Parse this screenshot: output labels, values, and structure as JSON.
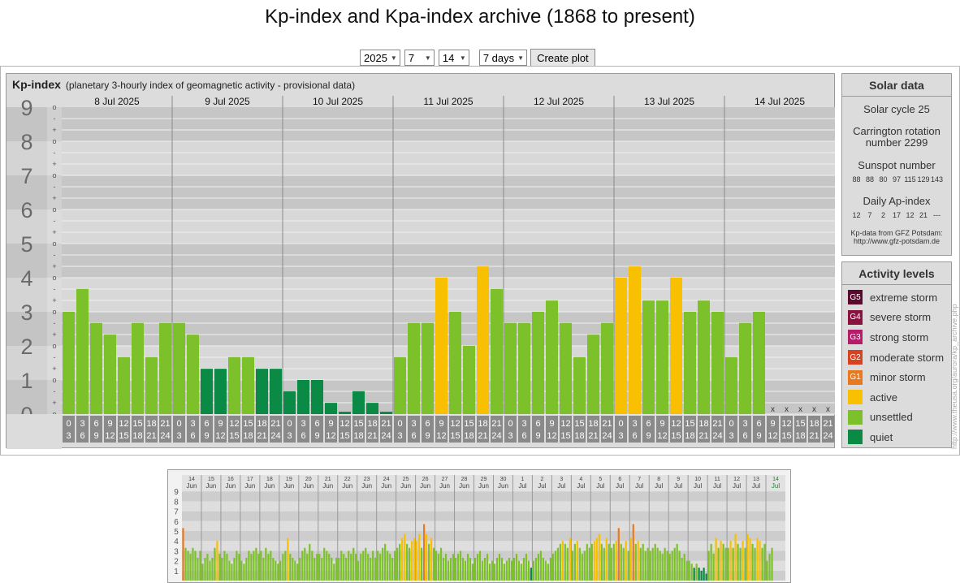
{
  "page": {
    "title": "Kp-index and Kpa-index archive (1868 to present)"
  },
  "controls": {
    "year": "2025",
    "month": "7",
    "day": "14",
    "period": "7 days",
    "create_label": "Create plot"
  },
  "kp_panel": {
    "name": "Kp-index",
    "subtitle": "(planetary 3-hourly index of geomagnetic activity - provisional data)"
  },
  "solar": {
    "title": "Solar data",
    "cycle": "Solar cycle 25",
    "carrington_line1": "Carrington rotation",
    "carrington_line2": "number 2299",
    "sunspot_title": "Sunspot number",
    "sunspot_values": [
      "88",
      "88",
      "80",
      "97",
      "115",
      "129",
      "143"
    ],
    "ap_title": "Daily Ap-index",
    "ap_values": [
      "12",
      "7",
      "2",
      "17",
      "12",
      "21",
      "---"
    ],
    "credit_line1": "Kp-data from GFZ Potsdam:",
    "credit_line2": "http://www.gfz-potsdam.de"
  },
  "activity": {
    "title": "Activity levels",
    "items": [
      {
        "code": "G5",
        "label": "extreme storm",
        "color": "#5a0a2e"
      },
      {
        "code": "G4",
        "label": "severe storm",
        "color": "#8a1240"
      },
      {
        "code": "G3",
        "label": "strong storm",
        "color": "#b51d6a"
      },
      {
        "code": "G2",
        "label": "moderate storm",
        "color": "#d8431f"
      },
      {
        "code": "G1",
        "label": "minor storm",
        "color": "#e8791e"
      },
      {
        "code": "",
        "label": "active",
        "color": "#f8c000"
      },
      {
        "code": "",
        "label": "unsettled",
        "color": "#7cc12a"
      },
      {
        "code": "",
        "label": "quiet",
        "color": "#0a8a44"
      }
    ]
  },
  "vertical_url": "http://www.theusa.org/aurora/kp_archive.php",
  "chart_data": [
    {
      "type": "bar",
      "ylim": [
        0,
        9
      ],
      "y_ticks": [
        "0",
        "1",
        "2",
        "3",
        "4",
        "5",
        "6",
        "7",
        "8",
        "9"
      ],
      "sub_ticks": [
        "o",
        "+",
        "-"
      ],
      "days": [
        "8 Jul 2025",
        "9 Jul 2025",
        "10 Jul 2025",
        "11 Jul 2025",
        "12 Jul 2025",
        "13 Jul 2025",
        "14 Jul 2025"
      ],
      "slot_top": [
        "0",
        "3",
        "6",
        "9",
        "12",
        "15",
        "18",
        "21"
      ],
      "slot_bottom": [
        "3",
        "6",
        "9",
        "12",
        "15",
        "18",
        "21",
        "24"
      ],
      "missing_marker": "x",
      "values": [
        3,
        3.67,
        2.67,
        2.33,
        1.67,
        2.67,
        1.67,
        2.67,
        2.67,
        2.33,
        1.33,
        1.33,
        1.67,
        1.67,
        1.33,
        1.33,
        0.67,
        1,
        1,
        0.33,
        0.07,
        0.67,
        0.33,
        0.07,
        1.67,
        2.67,
        2.67,
        4,
        3,
        2,
        4.33,
        3.67,
        2.67,
        2.67,
        3,
        3.33,
        2.67,
        1.67,
        2.33,
        2.67,
        4,
        4.33,
        3.33,
        3.33,
        4,
        3,
        3.33,
        3,
        1.67,
        2.67,
        3,
        null,
        null,
        null,
        null,
        null
      ],
      "colors": {
        "quiet": "#0a8a44",
        "unsettled": "#7cc12a",
        "active": "#f8c000",
        "g1": "#e8791e"
      }
    },
    {
      "type": "bar",
      "ylim": [
        0,
        9
      ],
      "y_ticks": [
        "1",
        "2",
        "3",
        "4",
        "5",
        "6",
        "7",
        "8",
        "9"
      ],
      "day_numbers": [
        "14",
        "15",
        "16",
        "17",
        "18",
        "19",
        "20",
        "21",
        "22",
        "23",
        "24",
        "25",
        "26",
        "27",
        "28",
        "29",
        "30",
        "1",
        "2",
        "3",
        "4",
        "5",
        "6",
        "7",
        "8",
        "9",
        "10",
        "11",
        "12",
        "13",
        "14"
      ],
      "month_labels": [
        "Jun",
        "Jun",
        "Jun",
        "Jun",
        "Jun",
        "Jun",
        "Jun",
        "Jun",
        "Jun",
        "Jun",
        "Jun",
        "Jun",
        "Jun",
        "Jun",
        "Jun",
        "Jun",
        "Jun",
        "Jul",
        "Jul",
        "Jul",
        "Jul",
        "Jul",
        "Jul",
        "Jul",
        "Jul",
        "Jul",
        "Jul",
        "Jul",
        "Jul",
        "Jul",
        "Jul"
      ],
      "daily_values": [
        [
          5.3,
          3.3,
          3.0,
          2.7,
          3.3,
          3.0,
          2.3,
          3.0
        ],
        [
          1.7,
          2.3,
          2.7,
          2.0,
          2.3,
          3.3,
          4.0,
          2.7
        ],
        [
          2.3,
          3.0,
          2.7,
          2.0,
          1.7,
          2.3,
          3.0,
          2.7
        ],
        [
          2.0,
          1.7,
          2.3,
          3.0,
          2.7,
          3.0,
          3.3,
          2.7
        ],
        [
          3.0,
          2.3,
          3.3,
          2.7,
          3.0,
          2.3,
          2.0,
          1.7
        ],
        [
          2.0,
          2.7,
          3.0,
          4.3,
          2.7,
          2.3,
          2.0,
          1.7
        ],
        [
          2.3,
          3.0,
          3.3,
          2.7,
          3.7,
          3.0,
          2.3,
          2.7
        ],
        [
          2.7,
          2.3,
          3.3,
          3.0,
          2.7,
          2.3,
          1.7,
          2.3
        ],
        [
          2.3,
          3.0,
          2.7,
          2.3,
          3.0,
          2.7,
          3.3,
          2.7
        ],
        [
          2.0,
          2.7,
          3.0,
          3.3,
          2.7,
          2.3,
          3.0,
          2.3
        ],
        [
          3.0,
          2.7,
          3.3,
          3.7,
          3.0,
          2.7,
          2.3,
          3.0
        ],
        [
          3.3,
          3.7,
          4.3,
          4.7,
          3.7,
          3.3,
          4.0,
          4.3
        ],
        [
          4.0,
          4.7,
          3.3,
          5.7,
          4.7,
          3.7,
          4.3,
          3.3
        ],
        [
          3.0,
          2.7,
          3.3,
          2.3,
          2.7,
          2.0,
          2.3,
          2.7
        ],
        [
          2.3,
          2.7,
          3.0,
          2.3,
          2.0,
          2.7,
          2.3,
          1.7
        ],
        [
          2.3,
          2.7,
          3.0,
          2.0,
          2.3,
          2.7,
          1.7,
          2.0
        ],
        [
          1.7,
          2.3,
          2.7,
          2.3,
          1.7,
          2.0,
          2.3,
          2.0
        ],
        [
          2.3,
          2.7,
          2.0,
          1.7,
          2.3,
          2.7,
          2.0,
          1.3
        ],
        [
          2.0,
          2.3,
          2.7,
          3.0,
          2.3,
          2.0,
          1.7,
          2.3
        ],
        [
          2.7,
          3.0,
          3.3,
          3.7,
          4.0,
          3.7,
          3.3,
          4.3
        ],
        [
          3.0,
          3.7,
          4.0,
          3.3,
          2.7,
          3.0,
          3.7,
          3.3
        ],
        [
          3.7,
          4.0,
          4.3,
          4.7,
          3.7,
          3.3,
          4.3,
          3.7
        ],
        [
          3.3,
          3.7,
          4.0,
          5.3,
          3.7,
          3.3,
          4.0,
          3.0
        ],
        [
          4.3,
          5.7,
          3.7,
          4.0,
          3.3,
          3.7,
          3.0,
          3.3
        ],
        [
          3.0,
          3.3,
          3.7,
          3.3,
          3.0,
          2.7,
          3.3,
          3.0
        ],
        [
          2.7,
          3.0,
          3.3,
          3.7,
          3.0,
          2.3,
          2.7,
          2.0
        ],
        [
          2.0,
          1.7,
          1.3,
          1.7,
          1.3,
          1.0,
          1.3,
          0.7
        ],
        [
          3.0,
          3.7,
          2.7,
          4.3,
          3.3,
          4.0,
          3.7,
          3.3
        ],
        [
          3.3,
          4.0,
          3.3,
          4.7,
          3.7,
          3.3,
          4.0,
          3.3
        ],
        [
          4.7,
          4.3,
          3.7,
          3.3,
          4.3,
          4.0,
          3.3,
          3.7
        ],
        [
          2.0,
          2.7,
          3.3,
          null,
          null,
          null,
          null,
          null
        ]
      ]
    }
  ]
}
